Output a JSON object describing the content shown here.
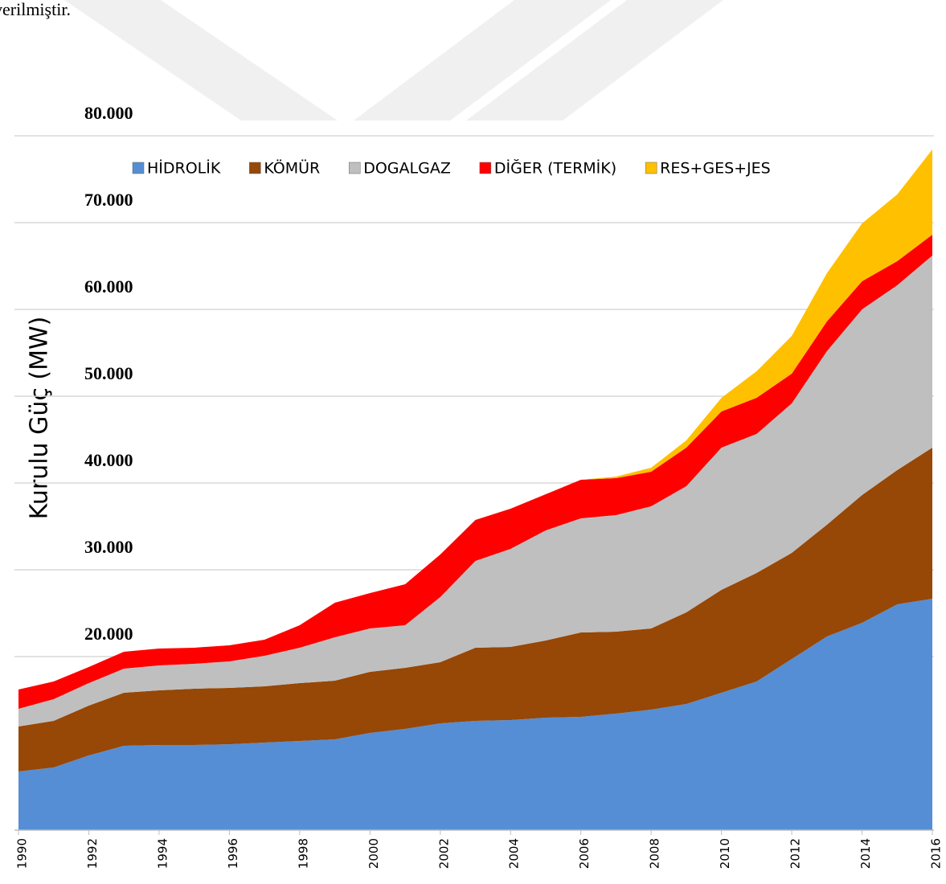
{
  "intro_text": "verilmiştir.",
  "chart_data": {
    "type": "stacked_area",
    "ylabel": "Kurulu Güç  (MW)",
    "x": [
      1990,
      1991,
      1992,
      1993,
      1994,
      1995,
      1996,
      1997,
      1998,
      1999,
      2000,
      2001,
      2002,
      2003,
      2004,
      2005,
      2006,
      2007,
      2008,
      2009,
      2010,
      2011,
      2012,
      2013,
      2014,
      2015,
      2016
    ],
    "xlim": [
      1990,
      2016
    ],
    "xticks": [
      1990,
      1992,
      1994,
      1996,
      1998,
      2000,
      2002,
      2004,
      2006,
      2008,
      2010,
      2012,
      2014,
      2016
    ],
    "ylim": [
      0,
      80000
    ],
    "yticks": [
      {
        "value": 20000,
        "label": "20.000"
      },
      {
        "value": 30000,
        "label": "30.000"
      },
      {
        "value": 40000,
        "label": "40.000"
      },
      {
        "value": 50000,
        "label": "50.000"
      },
      {
        "value": 60000,
        "label": "60.000"
      },
      {
        "value": 70000,
        "label": "70.000"
      },
      {
        "value": 80000,
        "label": "80.000"
      }
    ],
    "grid": true,
    "legend": "top",
    "series": [
      {
        "name": "HİDROLİK",
        "color": "#558ed5",
        "values": [
          6760,
          7220,
          8610,
          9720,
          9810,
          9810,
          9900,
          10090,
          10280,
          10460,
          11200,
          11670,
          12300,
          12590,
          12680,
          12960,
          13060,
          13430,
          13890,
          14540,
          15830,
          17130,
          19720,
          22310,
          23890,
          26020,
          26670
        ]
      },
      {
        "name": "KÖMÜR",
        "color": "#974706",
        "values": [
          5180,
          5370,
          5740,
          6110,
          6300,
          6490,
          6490,
          6480,
          6660,
          6760,
          7040,
          7030,
          7050,
          8430,
          8430,
          8890,
          9720,
          9440,
          9350,
          10550,
          11860,
          12500,
          12220,
          12880,
          14720,
          15460,
          17400
        ]
      },
      {
        "name": "DOGALGAZ",
        "color": "#bfbfbf",
        "values": [
          2040,
          2500,
          2590,
          2780,
          2870,
          2870,
          3050,
          3520,
          4080,
          5000,
          5000,
          4910,
          7500,
          10000,
          11300,
          12690,
          13150,
          13430,
          14070,
          14540,
          16380,
          16020,
          17230,
          20000,
          21390,
          21300,
          22130
        ]
      },
      {
        "name": "DİĞER (TERMİK)",
        "color": "#ff0000",
        "values": [
          2220,
          2040,
          1860,
          1950,
          1950,
          1850,
          1860,
          1850,
          2590,
          3980,
          4070,
          4720,
          4910,
          4720,
          4630,
          4160,
          4440,
          4260,
          3990,
          4440,
          4170,
          4160,
          3420,
          3420,
          3240,
          2780,
          2410
        ]
      },
      {
        "name": "RES+GES+JES",
        "color": "#ffc000",
        "values": [
          0,
          0,
          0,
          0,
          0,
          0,
          0,
          0,
          0,
          0,
          0,
          0,
          0,
          0,
          0,
          0,
          0,
          180,
          460,
          840,
          1570,
          3060,
          4350,
          5560,
          6670,
          7680,
          9820
        ]
      }
    ]
  }
}
